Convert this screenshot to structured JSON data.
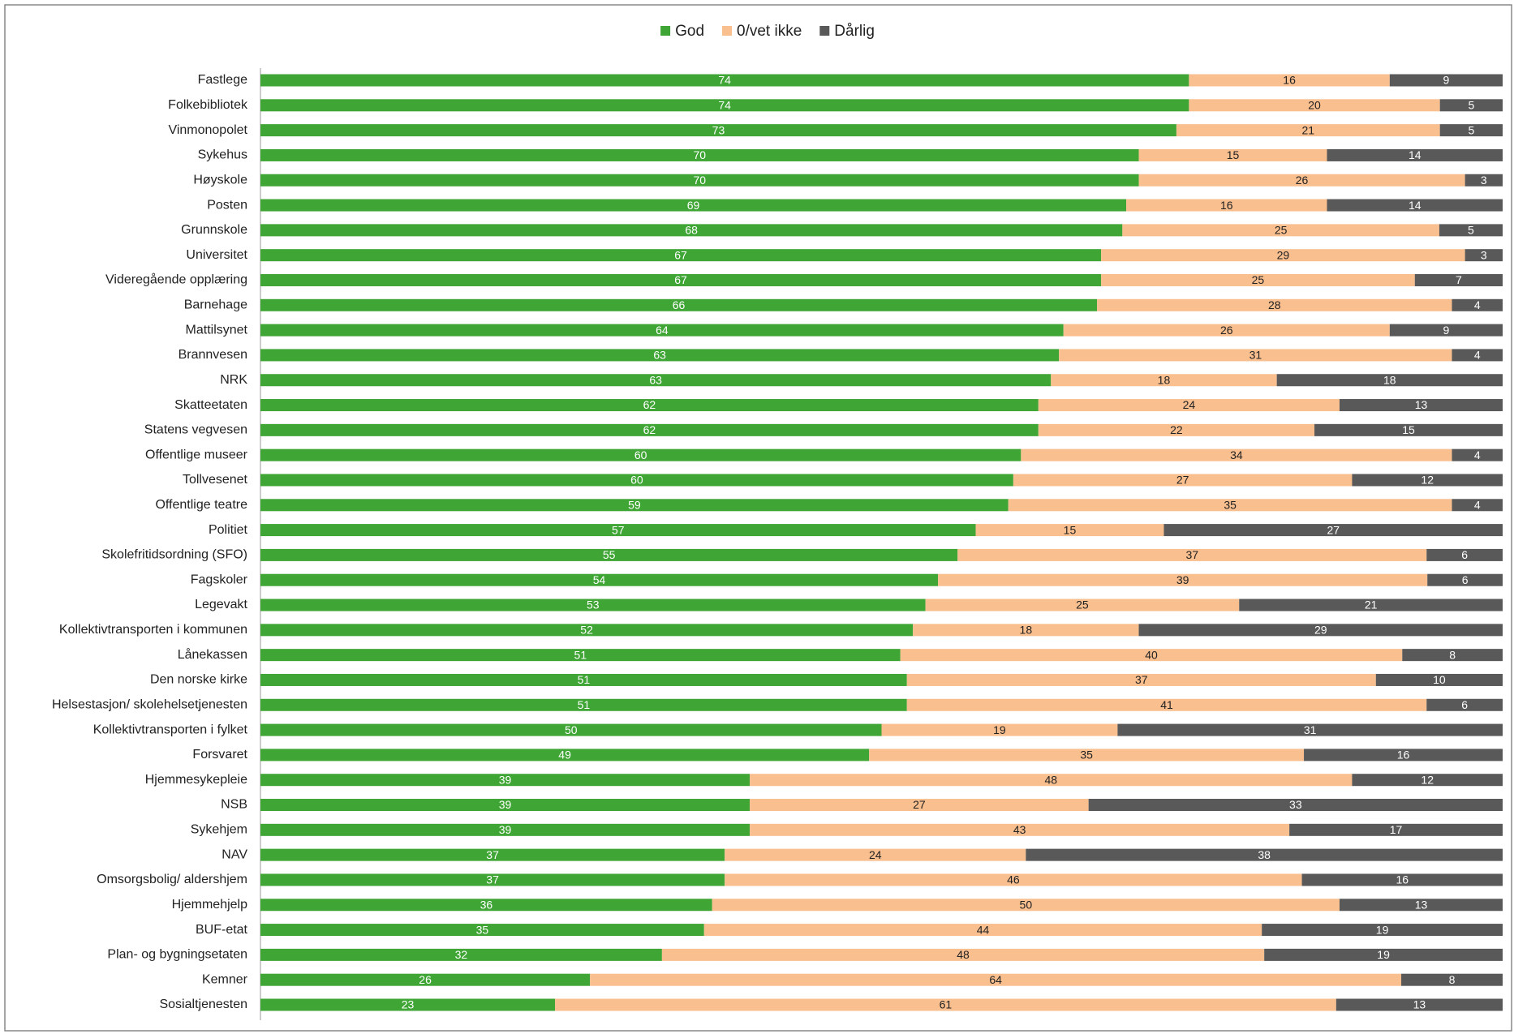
{
  "chart_data": {
    "type": "stacked-bar-horizontal",
    "stacking": "percent",
    "categories": [
      "Fastlege",
      "Folkebibliotek",
      "Vinmonopolet",
      "Sykehus",
      "Høyskole",
      "Posten",
      "Grunnskole",
      "Universitet",
      "Videregående opplæring",
      "Barnehage",
      "Mattilsynet",
      "Brannvesen",
      "NRK",
      "Skatteetaten",
      "Statens vegvesen",
      "Offentlige museer",
      "Tollvesenet",
      "Offentlige teatre",
      "Politiet",
      "Skolefritidsordning (SFO)",
      "Fagskoler",
      "Legevakt",
      "Kollektivtransporten i kommunen",
      "Lånekassen",
      "Den norske kirke",
      "Helsestasjon/ skolehelsetjenesten",
      "Kollektivtransporten i fylket",
      "Forsvaret",
      "Hjemmesykepleie",
      "NSB",
      "Sykehjem",
      "NAV",
      "Omsorgsbolig/ aldershjem",
      "Hjemmehjelp",
      "BUF-etat",
      "Plan- og bygningsetaten",
      "Kemner",
      "Sosialtjenesten"
    ],
    "series": [
      {
        "name": "God",
        "color": "#3fa535",
        "label_color": "#ffffff",
        "values": [
          74,
          74,
          73,
          70,
          70,
          69,
          68,
          67,
          67,
          66,
          64,
          63,
          63,
          62,
          62,
          60,
          60,
          59,
          57,
          55,
          54,
          53,
          52,
          51,
          51,
          51,
          50,
          49,
          39,
          39,
          39,
          37,
          37,
          36,
          35,
          32,
          26,
          23
        ]
      },
      {
        "name": "0/vet ikke",
        "color": "#f9bf8f",
        "label_color": "#222222",
        "values": [
          16,
          20,
          21,
          15,
          26,
          16,
          25,
          29,
          25,
          28,
          26,
          31,
          18,
          24,
          22,
          34,
          27,
          35,
          15,
          37,
          39,
          25,
          18,
          40,
          37,
          41,
          19,
          35,
          48,
          27,
          43,
          24,
          46,
          50,
          44,
          48,
          64,
          61
        ]
      },
      {
        "name": "Dårlig",
        "color": "#595959",
        "label_color": "#ffffff",
        "values": [
          9,
          5,
          5,
          14,
          3,
          14,
          5,
          3,
          7,
          4,
          9,
          4,
          18,
          13,
          15,
          4,
          12,
          4,
          27,
          6,
          6,
          21,
          29,
          8,
          10,
          6,
          31,
          16,
          12,
          33,
          17,
          38,
          16,
          13,
          19,
          19,
          8,
          13
        ]
      }
    ],
    "legend": "top",
    "grid": false
  }
}
